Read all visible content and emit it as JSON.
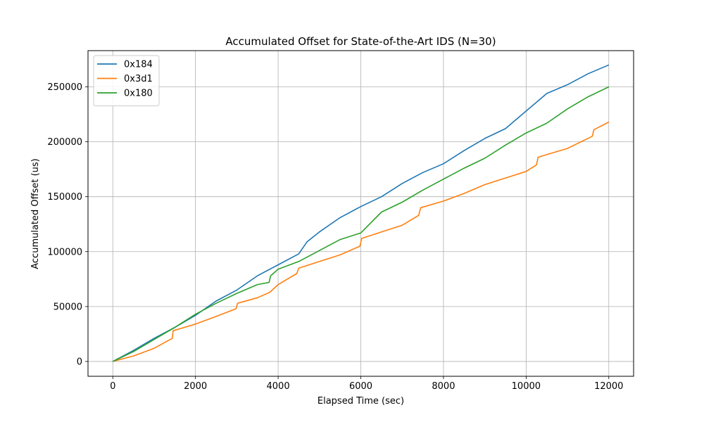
{
  "chart_data": {
    "type": "line",
    "title": "Accumulated Offset for State-of-the-Art IDS (N=30)",
    "xlabel": "Elapsed Time (sec)",
    "ylabel": "Accumulated Offset (us)",
    "xlim": [
      -600,
      12600
    ],
    "ylim": [
      -13500,
      283000
    ],
    "xticks": [
      0,
      2000,
      4000,
      6000,
      8000,
      10000,
      12000
    ],
    "yticks": [
      0,
      50000,
      100000,
      150000,
      200000,
      250000
    ],
    "grid": true,
    "legend_position": "top-left",
    "series": [
      {
        "name": "0x184",
        "color": "#1f77b4",
        "x": [
          0,
          500,
          1000,
          1500,
          2000,
          2500,
          3000,
          3500,
          4000,
          4500,
          4700,
          5000,
          5500,
          6000,
          6500,
          7000,
          7500,
          8000,
          8500,
          9000,
          9500,
          10000,
          10500,
          11000,
          11500,
          12000
        ],
        "y": [
          0,
          10000,
          21000,
          31000,
          42000,
          55000,
          65000,
          78000,
          88000,
          98000,
          109000,
          118000,
          131000,
          141000,
          150000,
          162000,
          172000,
          180000,
          192000,
          203000,
          212000,
          228000,
          244000,
          252000,
          262000,
          270000
        ]
      },
      {
        "name": "0x3d1",
        "color": "#ff7f0e",
        "x": [
          0,
          500,
          1000,
          1440,
          1460,
          2000,
          2500,
          2980,
          3020,
          3500,
          3800,
          4000,
          4450,
          4500,
          5000,
          5500,
          5980,
          6020,
          6500,
          7000,
          7400,
          7450,
          8000,
          8500,
          9000,
          9500,
          10000,
          10250,
          10290,
          11000,
          11600,
          11640,
          12000
        ],
        "y": [
          0,
          5000,
          12000,
          21000,
          28000,
          34000,
          41000,
          48000,
          53000,
          58000,
          63000,
          70000,
          80000,
          85000,
          91000,
          97000,
          105000,
          112000,
          118000,
          124000,
          133000,
          140000,
          146000,
          153000,
          161000,
          167000,
          173000,
          179000,
          186000,
          194000,
          205000,
          211000,
          218000
        ]
      },
      {
        "name": "0x180",
        "color": "#2ca02c",
        "x": [
          0,
          500,
          1000,
          1500,
          2000,
          2500,
          3000,
          3500,
          3780,
          3820,
          4000,
          4500,
          5000,
          5500,
          6000,
          6500,
          7000,
          7500,
          8000,
          8500,
          9000,
          9500,
          10000,
          10500,
          11000,
          11500,
          12000
        ],
        "y": [
          0,
          9000,
          20000,
          31000,
          43000,
          53000,
          62000,
          70000,
          72000,
          78000,
          84000,
          91000,
          101000,
          111000,
          117000,
          136000,
          145000,
          156000,
          166000,
          176000,
          185000,
          197000,
          208000,
          217000,
          230000,
          241000,
          250000
        ]
      }
    ]
  }
}
